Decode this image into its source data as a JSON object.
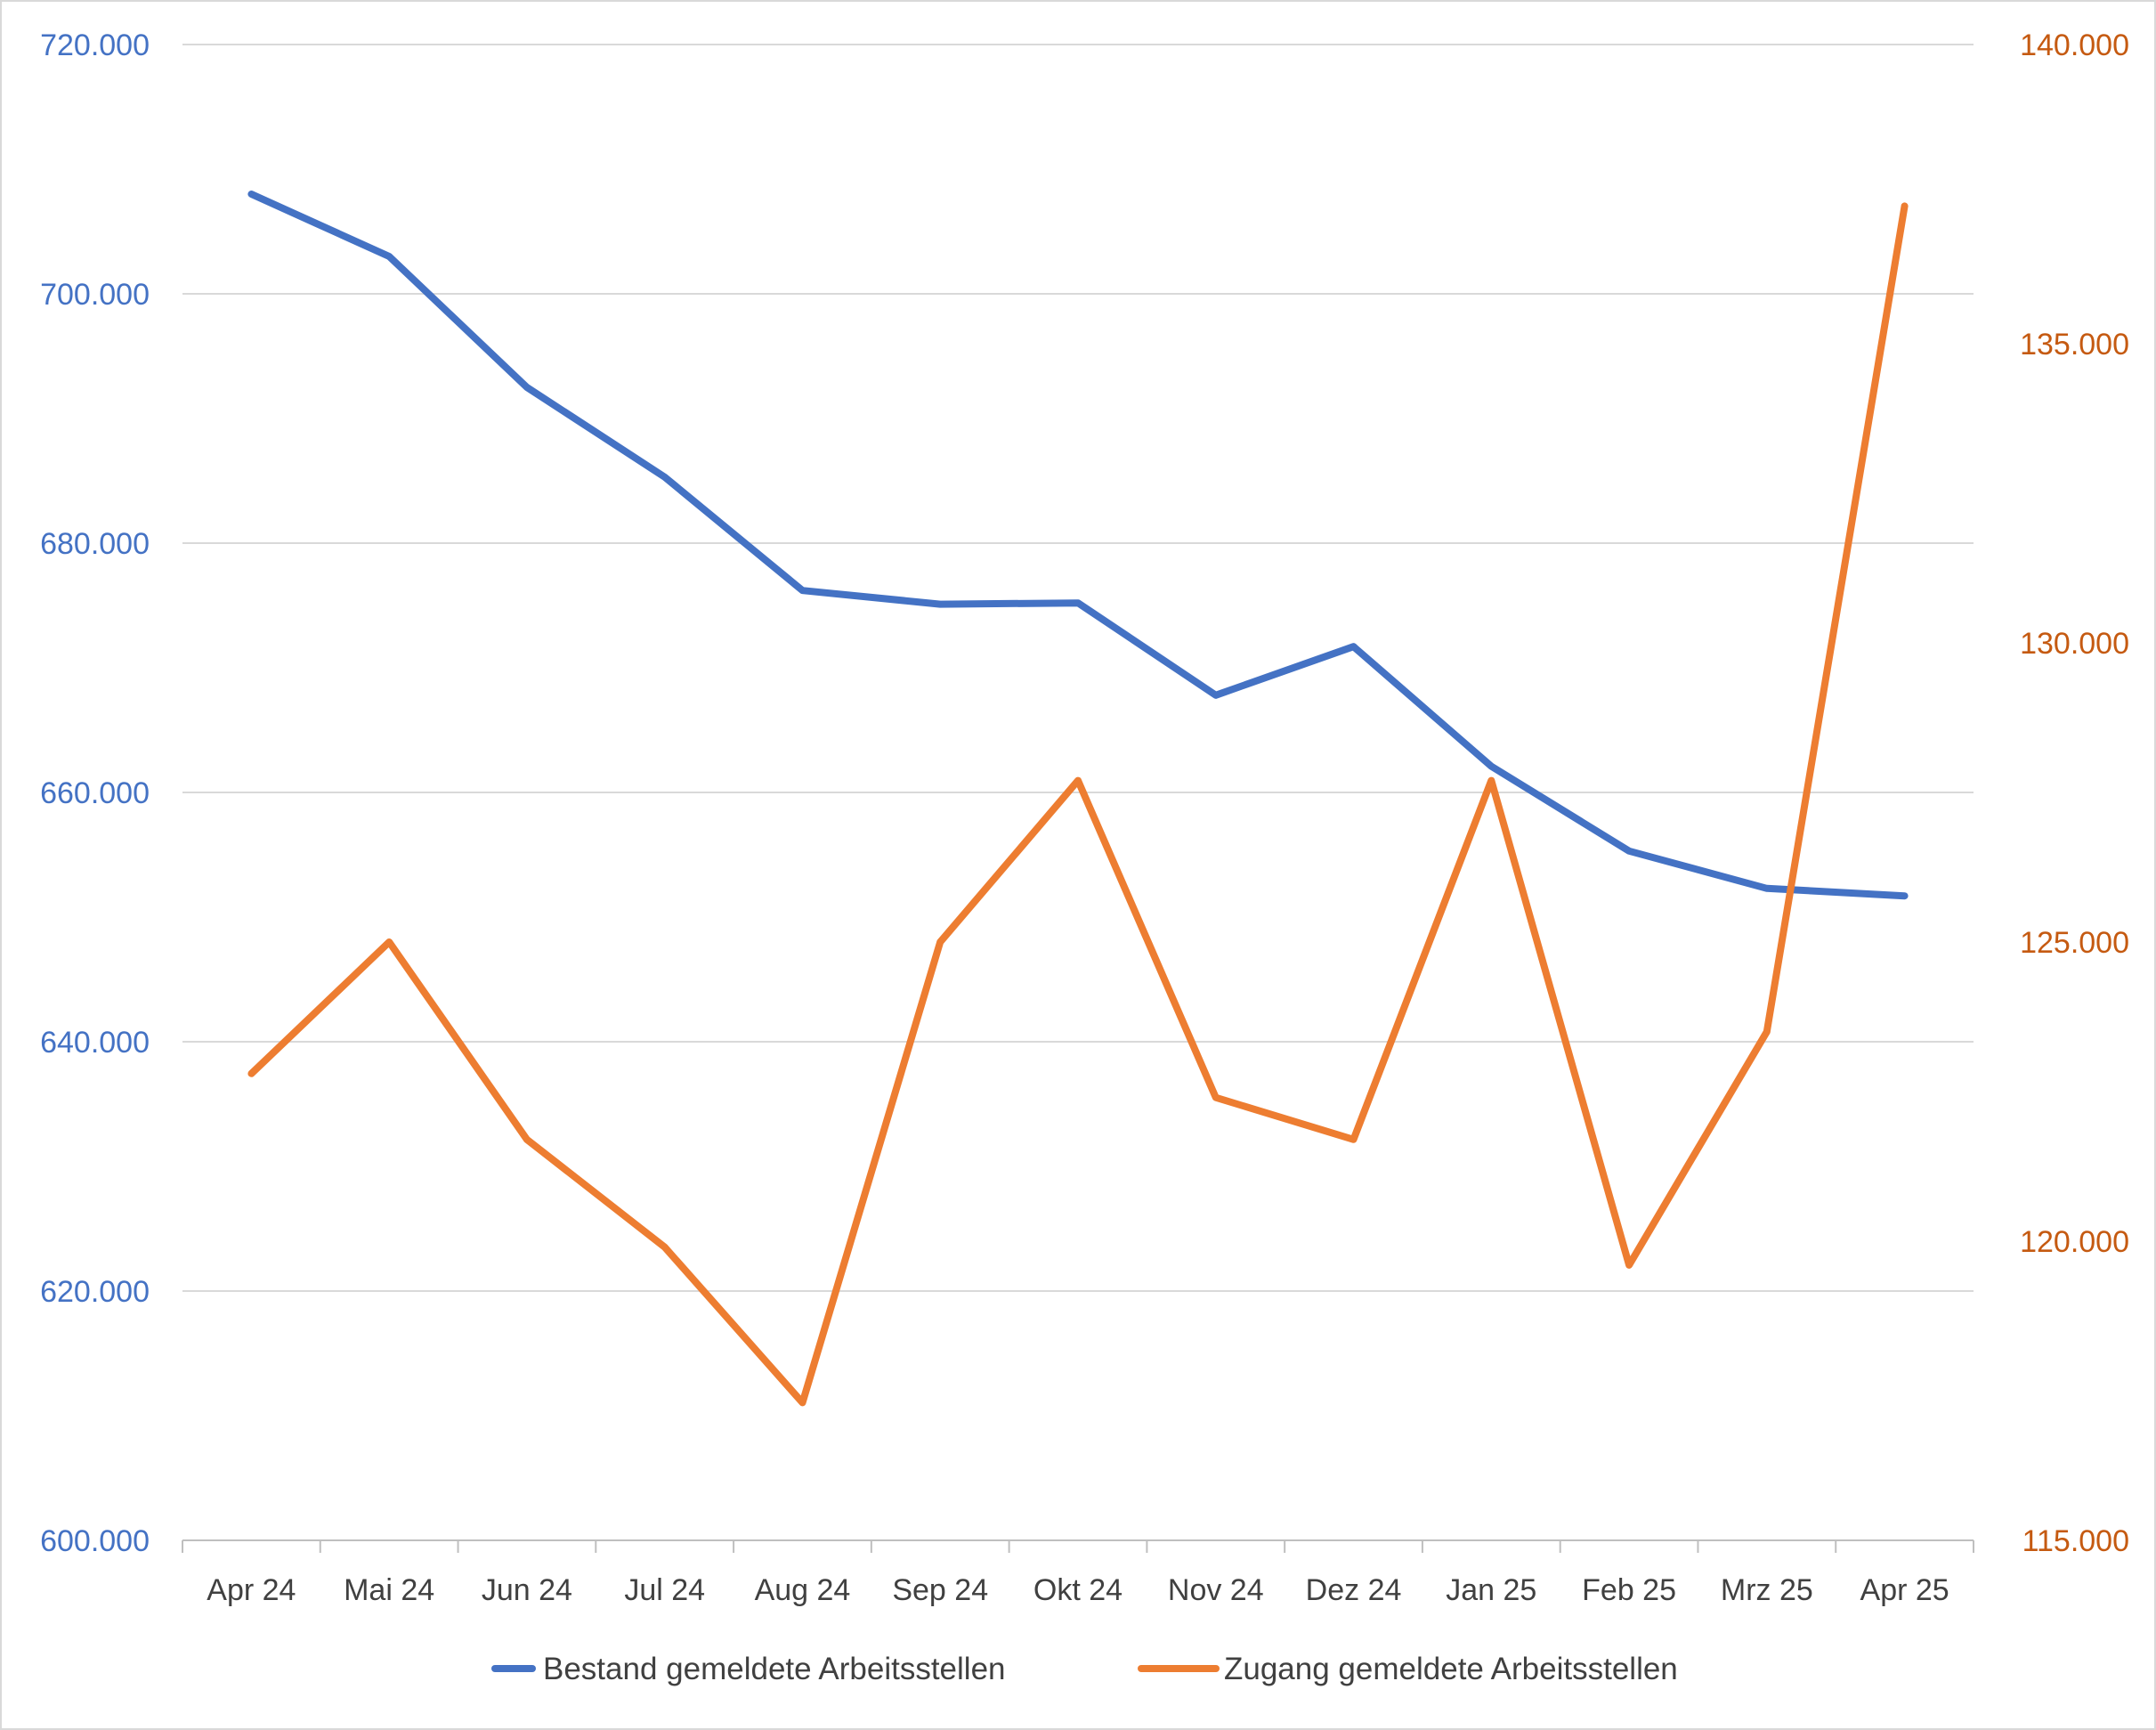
{
  "chart_data": {
    "type": "line",
    "categories": [
      "Apr 24",
      "Mai 24",
      "Jun 24",
      "Jul 24",
      "Aug 24",
      "Sep 24",
      "Okt 24",
      "Nov 24",
      "Dez 24",
      "Jan 25",
      "Feb 25",
      "Mrz 25",
      "Apr 25"
    ],
    "y_left": {
      "ylim": [
        600000,
        720000
      ],
      "tick_labels": [
        "600.000",
        "620.000",
        "640.000",
        "660.000",
        "680.000",
        "700.000",
        "720.000"
      ],
      "tick_values": [
        600000,
        620000,
        640000,
        660000,
        680000,
        700000,
        720000
      ],
      "color": "#4472C4"
    },
    "y_right": {
      "ylim": [
        115000,
        140000
      ],
      "tick_labels": [
        "115.000",
        "120.000",
        "125.000",
        "130.000",
        "135.000",
        "140.000"
      ],
      "tick_values": [
        115000,
        120000,
        125000,
        130000,
        135000,
        140000
      ],
      "color": "#C55A11"
    },
    "series": [
      {
        "name": "Bestand gemeldete Arbeitsstellen",
        "axis": "left",
        "color": "#4472C4",
        "values": [
          708000,
          703000,
          692500,
          685300,
          676200,
          675100,
          675200,
          667800,
          671700,
          662100,
          655300,
          652300,
          651700
        ]
      },
      {
        "name": "Zugang gemeldete Arbeitsstellen",
        "axis": "right",
        "color": "#ED7D31",
        "values": [
          122800,
          125000,
          121700,
          119900,
          117300,
          125000,
          127700,
          122400,
          121700,
          127700,
          119600,
          123500,
          137300
        ]
      }
    ],
    "grid": true,
    "legend_position": "bottom"
  }
}
